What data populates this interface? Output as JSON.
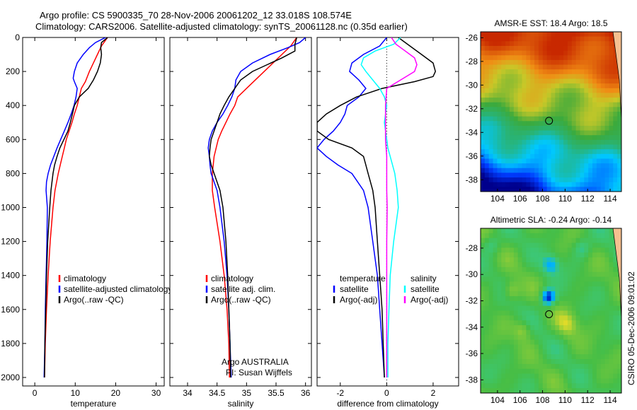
{
  "header": {
    "title_line1": "Argo profile: CS 5900335_70 28-Nov-2006 20061202_12 33.018S 108.574E",
    "title_line2": "Climatology: CARS2006. Satellite-adjusted climatology: synTS_20061128.nc (0.35d earlier)"
  },
  "credits": {
    "side_label": "CSIRO 05-Dec-2006 09:01:02",
    "argo_label": "Argo AUSTRALIA",
    "pi_label": "PI: Susan Wijffels"
  },
  "colors": {
    "climatology": "#ff0000",
    "satellite": "#0000ff",
    "argo": "#000000",
    "salinity_satellite": "#00ffff",
    "salinity_argo": "#ff00ff"
  },
  "chart_data": [
    {
      "id": "temperature",
      "type": "line",
      "xlabel": "temperature",
      "ylabel": "",
      "xlim": [
        -3,
        32
      ],
      "ylim": [
        2050,
        0
      ],
      "xticks": [
        "0",
        "10",
        "20",
        "30"
      ],
      "xtick_values": [
        0,
        10,
        20,
        30
      ],
      "yticks": [
        "0",
        "200",
        "400",
        "600",
        "800",
        "1000",
        "1200",
        "1400",
        "1600",
        "1800",
        "2000"
      ],
      "ytick_values": [
        0,
        200,
        400,
        600,
        800,
        1000,
        1200,
        1400,
        1600,
        1800,
        2000
      ],
      "legend": {
        "placement": "lower-center",
        "entries": [
          "climatology",
          "satellite-adjusted climatology",
          "Argo(..raw -QC)"
        ]
      },
      "series": [
        {
          "name": "climatology",
          "color": "#ff0000",
          "depth": [
            0,
            50,
            100,
            150,
            200,
            260,
            300,
            350,
            400,
            450,
            500,
            550,
            600,
            650,
            700,
            750,
            800,
            900,
            1000,
            1200,
            1400,
            1600,
            1800,
            2000
          ],
          "values": [
            18,
            16.5,
            15.5,
            14.5,
            13.5,
            12.5,
            11.5,
            11,
            10.5,
            9.8,
            9.2,
            8.5,
            7.8,
            7.3,
            6.8,
            6.3,
            5.8,
            5.0,
            4.5,
            3.8,
            3.3,
            2.9,
            2.6,
            2.4
          ]
        },
        {
          "name": "satellite-adjusted climatology",
          "color": "#0000ff",
          "depth": [
            0,
            30,
            60,
            100,
            150,
            200,
            240,
            260,
            300,
            350,
            400,
            450,
            500,
            550,
            600,
            650,
            700,
            750,
            800,
            850,
            900,
            1000,
            1200,
            1400,
            1600,
            1800,
            2000
          ],
          "values": [
            17.5,
            15,
            13.5,
            12,
            10.5,
            9.8,
            9.5,
            9.8,
            10.5,
            10.2,
            9.7,
            9.0,
            8.2,
            7.3,
            6.4,
            5.5,
            4.7,
            3.9,
            3.3,
            2.9,
            2.8,
            3.1,
            3.0,
            2.8,
            2.6,
            2.5,
            2.3
          ]
        },
        {
          "name": "Argo(..raw -QC)",
          "color": "#000000",
          "depth": [
            0,
            30,
            60,
            100,
            150,
            200,
            250,
            300,
            350,
            400,
            450,
            500,
            550,
            600,
            650,
            700,
            750,
            800,
            900,
            1000,
            1200,
            1400,
            1600,
            1800,
            2000
          ],
          "values": [
            18,
            16.5,
            16.3,
            16.5,
            16.2,
            15.5,
            14.5,
            13.2,
            11,
            9.8,
            9.3,
            8.8,
            8.2,
            7.2,
            6.2,
            5.5,
            4.9,
            4.5,
            4.0,
            3.7,
            3.2,
            2.9,
            2.7,
            2.5,
            2.4
          ]
        }
      ]
    },
    {
      "id": "salinity",
      "type": "line",
      "xlabel": "salinity",
      "ylabel": "",
      "xlim": [
        33.7,
        36.1
      ],
      "ylim": [
        2050,
        0
      ],
      "xticks": [
        "34",
        "34.5",
        "35",
        "35.5",
        "36"
      ],
      "xtick_values": [
        34,
        34.5,
        35,
        35.5,
        36
      ],
      "legend": {
        "placement": "lower-center",
        "entries": [
          "climatology",
          "satellite adj. clim.",
          "Argo(..raw -QC)"
        ]
      },
      "series": [
        {
          "name": "climatology",
          "color": "#ff0000",
          "depth": [
            0,
            50,
            100,
            150,
            200,
            250,
            300,
            350,
            400,
            450,
            500,
            550,
            600,
            700,
            800,
            900,
            1000,
            1200,
            1400,
            1600,
            1800,
            2000
          ],
          "values": [
            35.85,
            35.75,
            35.6,
            35.45,
            35.3,
            35.15,
            35.0,
            34.85,
            34.8,
            34.72,
            34.65,
            34.58,
            34.52,
            34.45,
            34.42,
            34.42,
            34.46,
            34.55,
            34.62,
            34.67,
            34.7,
            34.71
          ]
        },
        {
          "name": "satellite adj. clim.",
          "color": "#0000ff",
          "depth": [
            0,
            30,
            60,
            100,
            150,
            200,
            250,
            300,
            350,
            400,
            450,
            500,
            550,
            600,
            650,
            700,
            750,
            800,
            900,
            1000,
            1200,
            1400,
            1600,
            1800,
            2000
          ],
          "values": [
            36.0,
            35.9,
            35.7,
            35.4,
            35.1,
            34.9,
            34.82,
            34.8,
            34.75,
            34.68,
            34.6,
            34.5,
            34.42,
            34.37,
            34.35,
            34.37,
            34.38,
            34.4,
            34.5,
            34.55,
            34.62,
            34.67,
            34.7,
            34.72,
            34.74
          ]
        },
        {
          "name": "Argo(..raw -QC)",
          "color": "#000000",
          "depth": [
            0,
            40,
            80,
            120,
            160,
            200,
            250,
            300,
            350,
            400,
            450,
            500,
            550,
            600,
            650,
            700,
            750,
            800,
            900,
            1000,
            1200,
            1400,
            1600,
            1800,
            2000
          ],
          "values": [
            35.85,
            35.82,
            35.82,
            35.6,
            35.35,
            35.1,
            34.9,
            34.8,
            34.7,
            34.62,
            34.55,
            34.5,
            34.45,
            34.4,
            34.38,
            34.37,
            34.4,
            34.45,
            34.55,
            34.6,
            34.65,
            34.68,
            34.7,
            34.72,
            34.73
          ]
        }
      ]
    },
    {
      "id": "difference",
      "type": "line",
      "xlabel": "difference from climatology",
      "ylabel": "",
      "xlim": [
        -3.0,
        3.1
      ],
      "ylim": [
        2050,
        0
      ],
      "xticks": [
        "-2",
        "0",
        "2"
      ],
      "xtick_values": [
        -2,
        0,
        2
      ],
      "legend": {
        "placement": "lower-center",
        "temperature_title": "temperature",
        "salinity_title": "salinity",
        "entries": [
          "satellite",
          "Argo(-adj)",
          "satellite",
          "Argo(-adj)"
        ]
      },
      "series": [
        {
          "name": "temperature satellite",
          "color": "#0000ff",
          "depth": [
            0,
            50,
            100,
            150,
            200,
            250,
            300,
            350,
            400,
            450,
            500,
            550,
            600,
            650,
            700,
            750,
            800,
            900,
            1000,
            1200,
            1400,
            1600,
            1800,
            2000
          ],
          "values": [
            0,
            -0.3,
            -1.0,
            -1.5,
            -1.6,
            -1.2,
            -0.9,
            -1.2,
            -1.7,
            -1.8,
            -2.0,
            -2.3,
            -2.7,
            -3.0,
            -2.6,
            -2.1,
            -1.5,
            -1.0,
            -0.8,
            -0.6,
            -0.4,
            -0.3,
            -0.2,
            -0.1
          ]
        },
        {
          "name": "temperature Argo(-adj)",
          "color": "#000000",
          "depth": [
            0,
            50,
            100,
            150,
            200,
            230,
            260,
            300,
            350,
            400,
            450,
            500,
            550,
            600,
            650,
            700,
            750,
            800,
            900,
            1000,
            1200,
            1400,
            1600,
            1800,
            2000
          ],
          "values": [
            0.5,
            1.0,
            1.5,
            2.0,
            2.1,
            2.0,
            1.2,
            -0.2,
            -1.3,
            -2.0,
            -2.6,
            -3.0,
            -3.0,
            -2.5,
            -1.5,
            -1.0,
            -0.9,
            -0.8,
            -0.6,
            -0.5,
            -0.4,
            -0.3,
            -0.2,
            -0.15,
            -0.1
          ]
        },
        {
          "name": "salinity satellite",
          "color": "#00ffff",
          "depth": [
            0,
            40,
            80,
            120,
            160,
            200,
            250,
            300,
            350,
            400,
            450,
            500,
            550,
            600,
            650,
            700,
            750,
            800,
            900,
            1000,
            1200,
            1400,
            1600,
            1800,
            2000
          ],
          "values": [
            0.6,
            0.3,
            -0.5,
            -1.0,
            -1.1,
            -0.9,
            -0.6,
            -0.3,
            -0.1,
            0.0,
            -0.05,
            -0.1,
            -0.05,
            0.0,
            0.05,
            0.15,
            0.25,
            0.35,
            0.45,
            0.5,
            0.3,
            0.15,
            0.1,
            0.05,
            0.05
          ]
        },
        {
          "name": "salinity Argo(-adj)",
          "color": "#ff00ff",
          "depth": [
            0,
            40,
            80,
            120,
            160,
            200,
            250,
            300,
            400,
            500,
            600,
            700,
            800,
            900,
            1000,
            1200,
            1400,
            1600,
            1800,
            2000
          ],
          "values": [
            0.2,
            0.4,
            0.8,
            1.2,
            1.3,
            1.2,
            0.6,
            0.0,
            -0.05,
            -0.05,
            -0.05,
            0.0,
            0.0,
            0.0,
            0.02,
            0.0,
            0.0,
            0.0,
            0.0,
            0.0
          ]
        }
      ]
    },
    {
      "id": "sst_map",
      "type": "heatmap",
      "title": "AMSR-E SST: 18.4 Argo: 18.5",
      "xlim": [
        102.5,
        115
      ],
      "ylim": [
        -39,
        -25.5
      ],
      "xticks": [
        "104",
        "106",
        "108",
        "110",
        "112",
        "114"
      ],
      "xtick_values": [
        104,
        106,
        108,
        110,
        112,
        114
      ],
      "yticks": [
        "-26",
        "-28",
        "-30",
        "-32",
        "-34",
        "-36",
        "-38"
      ],
      "ytick_values": [
        -26,
        -28,
        -30,
        -32,
        -34,
        -36,
        -38
      ],
      "marker": {
        "lon": 108.574,
        "lat": -33.018
      },
      "colorscale": "jet-like, warm (orange/red) in north, cool (blue) in south-west"
    },
    {
      "id": "sla_map",
      "type": "heatmap",
      "title": "Altimetric SLA: -0.24 Argo: -0.14",
      "xlim": [
        102.5,
        115
      ],
      "ylim": [
        -39,
        -26.5
      ],
      "xticks": [
        "104",
        "106",
        "108",
        "110",
        "112",
        "114"
      ],
      "xtick_values": [
        104,
        106,
        108,
        110,
        112,
        114
      ],
      "yticks": [
        "-28",
        "-30",
        "-32",
        "-34",
        "-36",
        "-38"
      ],
      "ytick_values": [
        -28,
        -30,
        -32,
        -34,
        -36,
        -38
      ],
      "marker": {
        "lon": 108.574,
        "lat": -33.018
      },
      "colorscale": "green background with yellow/orange highs and cyan/blue lows"
    }
  ]
}
